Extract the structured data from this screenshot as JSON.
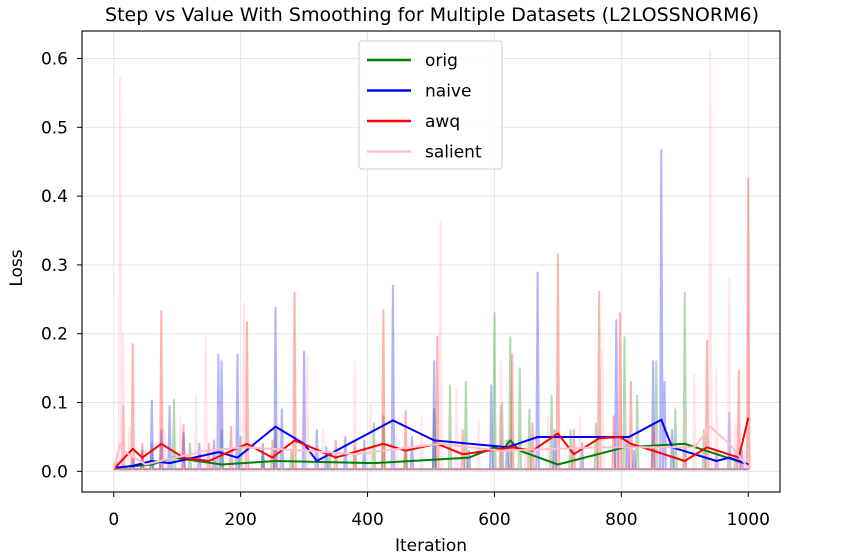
{
  "chart_data": {
    "type": "line",
    "title": "Step vs Value With Smoothing for Multiple Datasets (L2LOSSNORM6)",
    "xlabel": "Iteration",
    "ylabel": "Loss",
    "xlim": [
      -50,
      1050
    ],
    "ylim": [
      -0.03,
      0.64
    ],
    "x_ticks": [
      0,
      200,
      400,
      600,
      800,
      1000
    ],
    "x_tick_labels": [
      "0",
      "200",
      "400",
      "600",
      "800",
      "1000"
    ],
    "y_ticks": [
      0.0,
      0.1,
      0.2,
      0.3,
      0.4,
      0.5,
      0.6
    ],
    "y_tick_labels": [
      "0.0",
      "0.1",
      "0.2",
      "0.3",
      "0.4",
      "0.5",
      "0.6"
    ],
    "grid": true,
    "legend_position": "top-center",
    "series": [
      {
        "name": "orig",
        "color": "#008000",
        "raw_spikes": [
          [
            10,
            0.006
          ],
          [
            60,
            0.04
          ],
          [
            95,
            0.104
          ],
          [
            120,
            0.04
          ],
          [
            170,
            0.06
          ],
          [
            200,
            0.05
          ],
          [
            235,
            0.03
          ],
          [
            255,
            0.06
          ],
          [
            280,
            0.03
          ],
          [
            340,
            0.03
          ],
          [
            380,
            0.035
          ],
          [
            410,
            0.07
          ],
          [
            425,
            0.08
          ],
          [
            460,
            0.03
          ],
          [
            505,
            0.09
          ],
          [
            530,
            0.125
          ],
          [
            555,
            0.13
          ],
          [
            600,
            0.23
          ],
          [
            612,
            0.1
          ],
          [
            625,
            0.195
          ],
          [
            640,
            0.15
          ],
          [
            655,
            0.09
          ],
          [
            690,
            0.11
          ],
          [
            720,
            0.06
          ],
          [
            760,
            0.07
          ],
          [
            805,
            0.195
          ],
          [
            825,
            0.11
          ],
          [
            855,
            0.16
          ],
          [
            885,
            0.09
          ],
          [
            900,
            0.26
          ],
          [
            930,
            0.06
          ],
          [
            980,
            0.03
          ]
        ],
        "smooth_points": [
          [
            0,
            0.005
          ],
          [
            60,
            0.01
          ],
          [
            95,
            0.02
          ],
          [
            170,
            0.01
          ],
          [
            255,
            0.015
          ],
          [
            410,
            0.012
          ],
          [
            560,
            0.02
          ],
          [
            600,
            0.035
          ],
          [
            612,
            0.03
          ],
          [
            625,
            0.045
          ],
          [
            640,
            0.03
          ],
          [
            700,
            0.01
          ],
          [
            805,
            0.035
          ],
          [
            900,
            0.04
          ],
          [
            1000,
            0.01
          ]
        ]
      },
      {
        "name": "naive",
        "color": "#0000ff",
        "raw_spikes": [
          [
            5,
            0.013
          ],
          [
            30,
            0.02
          ],
          [
            45,
            0.03
          ],
          [
            60,
            0.103
          ],
          [
            75,
            0.06
          ],
          [
            88,
            0.095
          ],
          [
            110,
            0.056
          ],
          [
            135,
            0.04
          ],
          [
            158,
            0.045
          ],
          [
            165,
            0.17
          ],
          [
            170,
            0.16
          ],
          [
            195,
            0.17
          ],
          [
            235,
            0.04
          ],
          [
            255,
            0.238
          ],
          [
            265,
            0.09
          ],
          [
            300,
            0.174
          ],
          [
            320,
            0.06
          ],
          [
            335,
            0.035
          ],
          [
            365,
            0.05
          ],
          [
            395,
            0.045
          ],
          [
            440,
            0.27
          ],
          [
            470,
            0.05
          ],
          [
            505,
            0.16
          ],
          [
            560,
            0.03
          ],
          [
            595,
            0.125
          ],
          [
            620,
            0.045
          ],
          [
            668,
            0.289
          ],
          [
            695,
            0.06
          ],
          [
            738,
            0.04
          ],
          [
            792,
            0.22
          ],
          [
            810,
            0.05
          ],
          [
            820,
            0.03
          ],
          [
            850,
            0.16
          ],
          [
            863,
            0.467
          ],
          [
            868,
            0.13
          ],
          [
            880,
            0.06
          ],
          [
            950,
            0.03
          ],
          [
            970,
            0.085
          ],
          [
            990,
            0.03
          ]
        ],
        "smooth_points": [
          [
            0,
            0.005
          ],
          [
            30,
            0.008
          ],
          [
            60,
            0.015
          ],
          [
            88,
            0.012
          ],
          [
            165,
            0.028
          ],
          [
            195,
            0.02
          ],
          [
            255,
            0.065
          ],
          [
            300,
            0.04
          ],
          [
            320,
            0.015
          ],
          [
            440,
            0.074
          ],
          [
            505,
            0.045
          ],
          [
            620,
            0.035
          ],
          [
            668,
            0.05
          ],
          [
            792,
            0.05
          ],
          [
            812,
            0.05
          ],
          [
            863,
            0.075
          ],
          [
            880,
            0.035
          ],
          [
            950,
            0.015
          ],
          [
            970,
            0.02
          ],
          [
            1000,
            0.01
          ]
        ]
      },
      {
        "name": "awq",
        "color": "#ff0000",
        "raw_spikes": [
          [
            15,
            0.095
          ],
          [
            30,
            0.185
          ],
          [
            45,
            0.04
          ],
          [
            75,
            0.233
          ],
          [
            110,
            0.068
          ],
          [
            150,
            0.04
          ],
          [
            185,
            0.065
          ],
          [
            210,
            0.217
          ],
          [
            250,
            0.045
          ],
          [
            285,
            0.26
          ],
          [
            350,
            0.045
          ],
          [
            380,
            0.045
          ],
          [
            425,
            0.234
          ],
          [
            460,
            0.088
          ],
          [
            510,
            0.196
          ],
          [
            550,
            0.06
          ],
          [
            610,
            0.095
          ],
          [
            628,
            0.17
          ],
          [
            660,
            0.07
          ],
          [
            700,
            0.316
          ],
          [
            725,
            0.06
          ],
          [
            765,
            0.261
          ],
          [
            788,
            0.08
          ],
          [
            798,
            0.23
          ],
          [
            815,
            0.13
          ],
          [
            850,
            0.07
          ],
          [
            900,
            0.035
          ],
          [
            935,
            0.19
          ],
          [
            985,
            0.147
          ],
          [
            1000,
            0.425
          ]
        ],
        "smooth_points": [
          [
            0,
            0.003
          ],
          [
            30,
            0.033
          ],
          [
            45,
            0.02
          ],
          [
            75,
            0.04
          ],
          [
            110,
            0.02
          ],
          [
            150,
            0.015
          ],
          [
            210,
            0.04
          ],
          [
            250,
            0.02
          ],
          [
            285,
            0.045
          ],
          [
            350,
            0.02
          ],
          [
            425,
            0.04
          ],
          [
            460,
            0.03
          ],
          [
            510,
            0.04
          ],
          [
            550,
            0.025
          ],
          [
            628,
            0.035
          ],
          [
            660,
            0.03
          ],
          [
            700,
            0.055
          ],
          [
            725,
            0.025
          ],
          [
            765,
            0.048
          ],
          [
            798,
            0.05
          ],
          [
            815,
            0.04
          ],
          [
            850,
            0.03
          ],
          [
            900,
            0.015
          ],
          [
            935,
            0.035
          ],
          [
            985,
            0.02
          ],
          [
            1000,
            0.078
          ]
        ]
      },
      {
        "name": "salient",
        "color": "#ffc0cb",
        "raw_spikes": [
          [
            10,
            0.573
          ],
          [
            15,
            0.2
          ],
          [
            25,
            0.065
          ],
          [
            50,
            0.03
          ],
          [
            80,
            0.06
          ],
          [
            105,
            0.08
          ],
          [
            130,
            0.11
          ],
          [
            145,
            0.195
          ],
          [
            165,
            0.09
          ],
          [
            205,
            0.245
          ],
          [
            260,
            0.06
          ],
          [
            305,
            0.17
          ],
          [
            330,
            0.06
          ],
          [
            380,
            0.16
          ],
          [
            405,
            0.1
          ],
          [
            445,
            0.05
          ],
          [
            485,
            0.08
          ],
          [
            515,
            0.363
          ],
          [
            540,
            0.12
          ],
          [
            575,
            0.075
          ],
          [
            610,
            0.16
          ],
          [
            650,
            0.05
          ],
          [
            685,
            0.08
          ],
          [
            735,
            0.08
          ],
          [
            770,
            0.175
          ],
          [
            805,
            0.085
          ],
          [
            855,
            0.075
          ],
          [
            900,
            0.09
          ],
          [
            915,
            0.14
          ],
          [
            940,
            0.612
          ],
          [
            950,
            0.15
          ],
          [
            970,
            0.28
          ],
          [
            980,
            0.07
          ],
          [
            995,
            0.03
          ]
        ],
        "smooth_points": [
          [
            0,
            0.003
          ],
          [
            10,
            0.04
          ],
          [
            15,
            0.03
          ],
          [
            50,
            0.01
          ],
          [
            145,
            0.03
          ],
          [
            205,
            0.035
          ],
          [
            305,
            0.03
          ],
          [
            380,
            0.025
          ],
          [
            515,
            0.04
          ],
          [
            610,
            0.03
          ],
          [
            770,
            0.035
          ],
          [
            915,
            0.035
          ],
          [
            940,
            0.065
          ],
          [
            970,
            0.04
          ],
          [
            1000,
            0.005
          ]
        ]
      }
    ]
  }
}
